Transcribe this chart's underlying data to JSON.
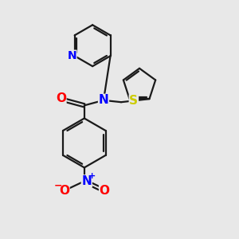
{
  "background_color": "#e8e8e8",
  "bond_color": "#1a1a1a",
  "N_color": "#0000ff",
  "O_color": "#ff0000",
  "S_color": "#cccc00",
  "bond_width": 1.6,
  "fig_size": [
    3.0,
    3.0
  ],
  "dpi": 100,
  "xlim": [
    0,
    10
  ],
  "ylim": [
    0,
    10
  ]
}
